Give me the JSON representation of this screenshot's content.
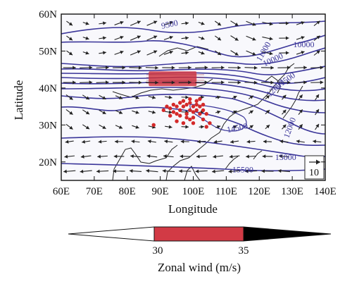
{
  "map": {
    "x_axis": {
      "title": "Longitude",
      "ticks": [
        "60E",
        "70E",
        "80E",
        "90E",
        "100E",
        "110E",
        "120E",
        "130E",
        "140E"
      ],
      "range": [
        60,
        140
      ]
    },
    "y_axis": {
      "title": "Latitude",
      "ticks": [
        "20N",
        "30N",
        "40N",
        "50N",
        "60N"
      ],
      "range": [
        15,
        60
      ]
    },
    "contour_labels": [
      {
        "text": "9500",
        "lon": 93,
        "lat": 56.5,
        "rotate": -12
      },
      {
        "text": "10000",
        "lon": 133.5,
        "lat": 51,
        "rotate": 0
      },
      {
        "text": "10000",
        "lon": 124.5,
        "lat": 47,
        "rotate": -25
      },
      {
        "text": "11000",
        "lon": 122,
        "lat": 49.5,
        "rotate": -60
      },
      {
        "text": "11500",
        "lon": 128.5,
        "lat": 41.5,
        "rotate": -35
      },
      {
        "text": "12000",
        "lon": 125.5,
        "lat": 39.5,
        "rotate": -45
      },
      {
        "text": "14500",
        "lon": 113.5,
        "lat": 28.5,
        "rotate": -12
      },
      {
        "text": "12000",
        "lon": 130,
        "lat": 29,
        "rotate": -70
      },
      {
        "text": "15000",
        "lon": 128,
        "lat": 20.5,
        "rotate": 0
      },
      {
        "text": "15500",
        "lon": 115,
        "lat": 17.2,
        "rotate": 0
      }
    ],
    "reference_vector": {
      "label": "10",
      "u": 10
    },
    "wind_streak": {
      "lon_range": [
        86.5,
        101
      ],
      "lat_range": [
        40.5,
        44.5
      ],
      "color": "#d23a45"
    },
    "stations": [
      [
        91,
        34
      ],
      [
        92,
        35
      ],
      [
        93,
        34.5
      ],
      [
        94,
        35.5
      ],
      [
        95,
        35
      ],
      [
        96,
        36
      ],
      [
        97,
        35
      ],
      [
        98,
        35.5
      ],
      [
        99,
        36
      ],
      [
        100,
        35
      ],
      [
        101,
        35.5
      ],
      [
        102,
        35
      ],
      [
        103,
        34
      ],
      [
        98,
        33
      ],
      [
        99,
        34
      ],
      [
        100,
        33.5
      ],
      [
        101,
        34
      ],
      [
        102,
        33
      ],
      [
        96,
        34
      ],
      [
        97,
        36.5
      ],
      [
        99,
        37
      ],
      [
        101,
        36.5
      ],
      [
        102,
        37
      ],
      [
        95,
        33
      ],
      [
        93,
        32.5
      ],
      [
        98,
        32
      ],
      [
        100,
        32
      ],
      [
        104,
        33
      ],
      [
        103,
        35.5
      ],
      [
        95,
        31
      ],
      [
        88,
        30
      ],
      [
        104,
        29.5
      ],
      [
        105,
        30.5
      ],
      [
        100,
        30.5
      ],
      [
        97,
        30.5
      ],
      [
        103,
        31.5
      ],
      [
        99,
        31.5
      ],
      [
        94,
        33.5
      ],
      [
        96,
        32.5
      ]
    ],
    "station_color": "#d42a2a",
    "contour_color": "#3a3599",
    "vector_color": "#222222"
  },
  "colorbar": {
    "title": "Zonal wind (m/s)",
    "thresholds": [
      "30",
      "35"
    ],
    "colors": [
      "#ffffff",
      "#d23a45",
      "#000000"
    ]
  }
}
